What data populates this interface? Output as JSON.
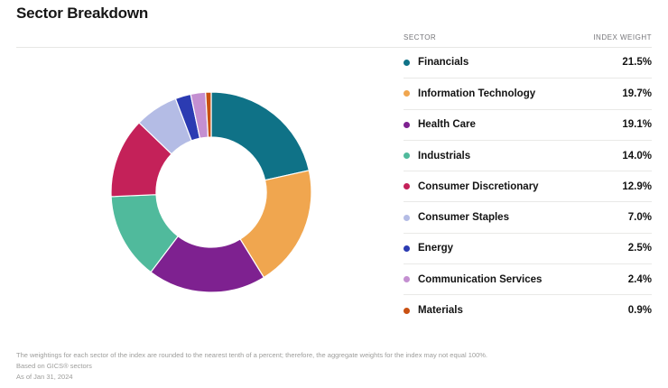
{
  "page": {
    "title": "Sector Breakdown"
  },
  "table": {
    "headers": {
      "sector": "SECTOR",
      "weight": "INDEX WEIGHT"
    },
    "rows": [
      {
        "label": "Financials",
        "weight": "21.5%",
        "color": "#0F7287"
      },
      {
        "label": "Information Technology",
        "weight": "19.7%",
        "color": "#F0A64F"
      },
      {
        "label": "Health Care",
        "weight": "19.1%",
        "color": "#7E2190"
      },
      {
        "label": "Industrials",
        "weight": "14.0%",
        "color": "#50BA9C"
      },
      {
        "label": "Consumer Discretionary",
        "weight": "12.9%",
        "color": "#C42159"
      },
      {
        "label": "Consumer Staples",
        "weight": "7.0%",
        "color": "#B4BCE5"
      },
      {
        "label": "Energy",
        "weight": "2.5%",
        "color": "#2B3BB2"
      },
      {
        "label": "Communication Services",
        "weight": "2.4%",
        "color": "#C48FD1"
      },
      {
        "label": "Materials",
        "weight": "0.9%",
        "color": "#C95012"
      }
    ]
  },
  "chart_data": {
    "type": "pie",
    "subtype": "donut",
    "title": "Sector Breakdown",
    "categories": [
      "Financials",
      "Information Technology",
      "Health Care",
      "Industrials",
      "Consumer Discretionary",
      "Consumer Staples",
      "Energy",
      "Communication Services",
      "Materials"
    ],
    "values": [
      21.5,
      19.7,
      19.1,
      14.0,
      12.9,
      7.0,
      2.5,
      2.4,
      0.9
    ],
    "colors": [
      "#0F7287",
      "#F0A64F",
      "#7E2190",
      "#50BA9C",
      "#C42159",
      "#B4BCE5",
      "#2B3BB2",
      "#C48FD1",
      "#C95012"
    ],
    "start_angle_deg": 0,
    "direction": "clockwise",
    "inner_radius_ratio": 0.55,
    "segment_gap_color": "#ffffff",
    "legend_position": "right"
  },
  "footnotes": [
    "The weightings for each sector of the index are rounded to the nearest tenth of a percent; therefore, the aggregate weights for the index may not equal 100%.",
    "Based on GICS® sectors",
    "As of Jan 31, 2024"
  ]
}
